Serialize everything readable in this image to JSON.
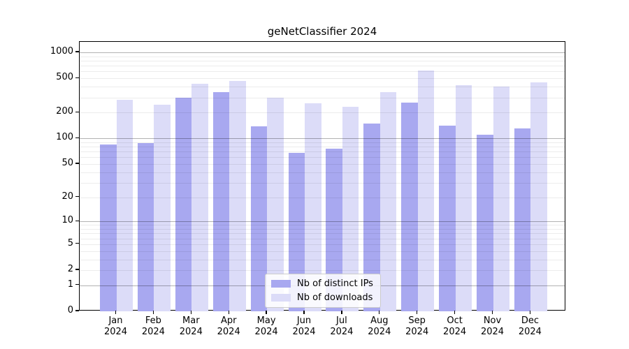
{
  "title": "geNetClassifier 2024",
  "colors": {
    "ips_bar": "#a8a8f0",
    "downloads_bar": "#dcdcf8",
    "major_gridline": "#b3b3b3",
    "minor_gridline": "#ececec",
    "axis": "#000000",
    "legend_border": "#cccccc"
  },
  "y_axis": {
    "tick_labels": [
      "0",
      "1",
      "2",
      "5",
      "10",
      "20",
      "50",
      "100",
      "200",
      "500",
      "1000"
    ]
  },
  "x_axis": {
    "tick_labels": [
      "Jan 2024",
      "Feb 2024",
      "Mar 2024",
      "Apr 2024",
      "May 2024",
      "Jun 2024",
      "Jul 2024",
      "Aug 2024",
      "Sep 2024",
      "Oct 2024",
      "Nov 2024",
      "Dec 2024"
    ]
  },
  "legend": {
    "entries": [
      "Nb of distinct IPs",
      "Nb of downloads"
    ]
  },
  "chart_data": {
    "type": "bar",
    "title": "geNetClassifier 2024",
    "categories": [
      "Jan 2024",
      "Feb 2024",
      "Mar 2024",
      "Apr 2024",
      "May 2024",
      "Jun 2024",
      "Jul 2024",
      "Aug 2024",
      "Sep 2024",
      "Oct 2024",
      "Nov 2024",
      "Dec 2024"
    ],
    "series": [
      {
        "name": "Nb of distinct IPs",
        "color_key": "ips_bar",
        "values": [
          85,
          88,
          300,
          345,
          137,
          67,
          76,
          150,
          260,
          140,
          111,
          131
        ]
      },
      {
        "name": "Nb of downloads",
        "color_key": "downloads_bar",
        "values": [
          280,
          245,
          430,
          470,
          295,
          257,
          235,
          345,
          615,
          415,
          400,
          445
        ]
      }
    ],
    "xlabel": "",
    "ylabel": "",
    "yscale": "log1p",
    "yticks": [
      0,
      1,
      2,
      5,
      10,
      20,
      50,
      100,
      200,
      500,
      1000
    ],
    "ylim": [
      0,
      1320
    ],
    "grid": "horizontal-major-and-minor",
    "legend_position": "inside-bottom-center"
  }
}
